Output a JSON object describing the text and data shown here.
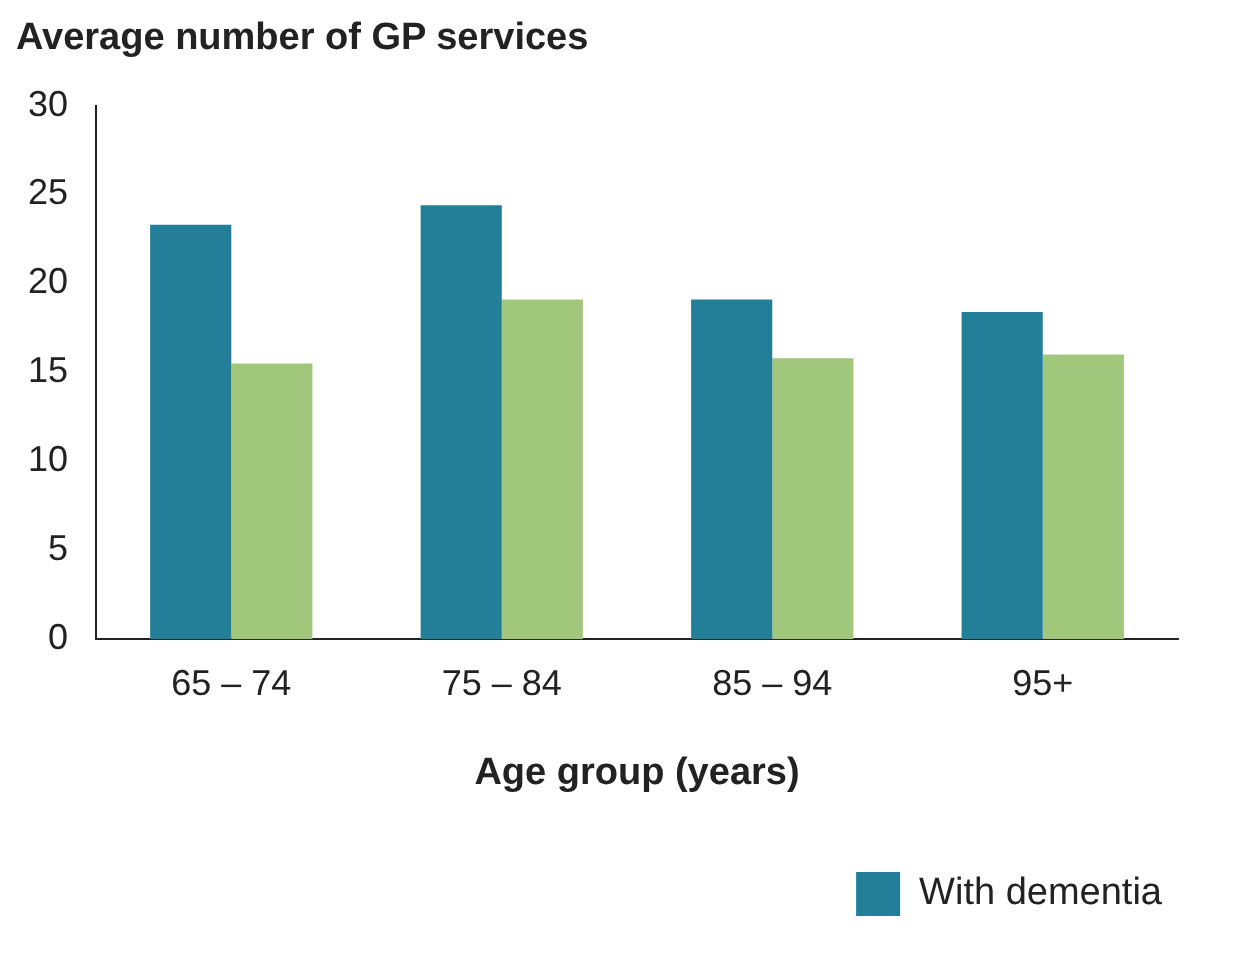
{
  "chart_data": {
    "type": "bar",
    "title": "Average number of GP services",
    "xlabel": "Age group (years)",
    "categories": [
      "65 – 74",
      "75 – 84",
      "85 – 94",
      "95+"
    ],
    "series": [
      {
        "name": "With dementia",
        "color": "#237e97",
        "values": [
          23.3,
          24.4,
          19.1,
          18.4
        ]
      },
      {
        "color": "#a0c77c",
        "values": [
          15.5,
          19.1,
          15.8,
          16.0
        ]
      }
    ],
    "ylim": [
      0,
      30
    ],
    "yticks": [
      0,
      5,
      10,
      15,
      20,
      25,
      30
    ],
    "grid": false,
    "legend": "bottom right"
  }
}
